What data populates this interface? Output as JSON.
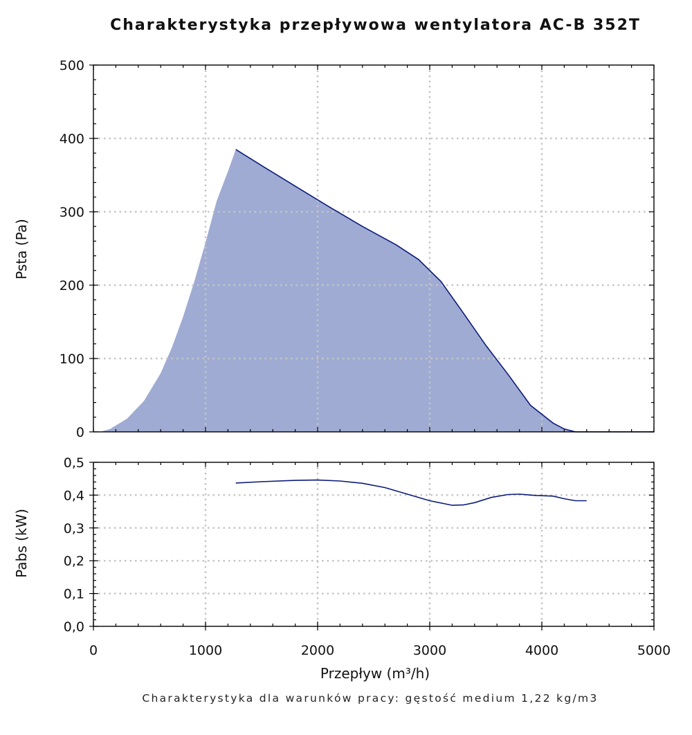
{
  "title": "Charakterystyka przepływowa wentylatora AC-B 352T",
  "footnote": "Charakterystyka dla warunków pracy: gęstość medium 1,22 kg/m3",
  "colors": {
    "fill": "#9fabd2",
    "line": "#0a1a7a",
    "grid": "#c6c6c6",
    "axis": "#000000"
  },
  "chart_data": [
    {
      "type": "area",
      "ylabel": "Psta (Pa)",
      "xlim": [
        0,
        5000
      ],
      "ylim": [
        0,
        500
      ],
      "yticks": [
        0,
        100,
        200,
        300,
        400,
        500
      ],
      "ytick_labels": [
        "0",
        "100",
        "200",
        "300",
        "400",
        "500"
      ],
      "grid": true,
      "series": [
        {
          "x": [
            60,
            150,
            300,
            450,
            600,
            700,
            800,
            900,
            1000,
            1100,
            1200,
            1270,
            1500,
            1800,
            2100,
            2400,
            2700,
            2900,
            3100,
            3300,
            3500,
            3700,
            3900,
            4100,
            4200,
            4300,
            4360,
            4400,
            5000
          ],
          "y": [
            0,
            4,
            18,
            42,
            80,
            115,
            157,
            205,
            258,
            315,
            355,
            385,
            363,
            335,
            307,
            280,
            255,
            235,
            205,
            162,
            118,
            78,
            36,
            12,
            4,
            0,
            0,
            0,
            0
          ]
        }
      ]
    },
    {
      "type": "line",
      "xlabel": "Przepływ (m³/h)",
      "ylabel": "Pabs (kW)",
      "xlim": [
        0,
        5000
      ],
      "ylim": [
        0,
        0.5
      ],
      "xticks": [
        0,
        1000,
        2000,
        3000,
        4000,
        5000
      ],
      "xtick_labels": [
        "0",
        "1000",
        "2000",
        "3000",
        "4000",
        "5000"
      ],
      "yticks": [
        0,
        0.1,
        0.2,
        0.3,
        0.4,
        0.5
      ],
      "ytick_labels": [
        "0,0",
        "0,1",
        "0,2",
        "0,3",
        "0,4",
        "0,5"
      ],
      "grid": true,
      "series": [
        {
          "x": [
            1270,
            1500,
            1800,
            2000,
            2200,
            2400,
            2600,
            2800,
            3000,
            3200,
            3300,
            3400,
            3550,
            3700,
            3800,
            3950,
            4100,
            4200,
            4300,
            4400
          ],
          "y": [
            0.437,
            0.441,
            0.445,
            0.446,
            0.443,
            0.436,
            0.423,
            0.403,
            0.383,
            0.369,
            0.37,
            0.377,
            0.393,
            0.402,
            0.403,
            0.399,
            0.397,
            0.389,
            0.383,
            0.383
          ]
        }
      ]
    }
  ]
}
